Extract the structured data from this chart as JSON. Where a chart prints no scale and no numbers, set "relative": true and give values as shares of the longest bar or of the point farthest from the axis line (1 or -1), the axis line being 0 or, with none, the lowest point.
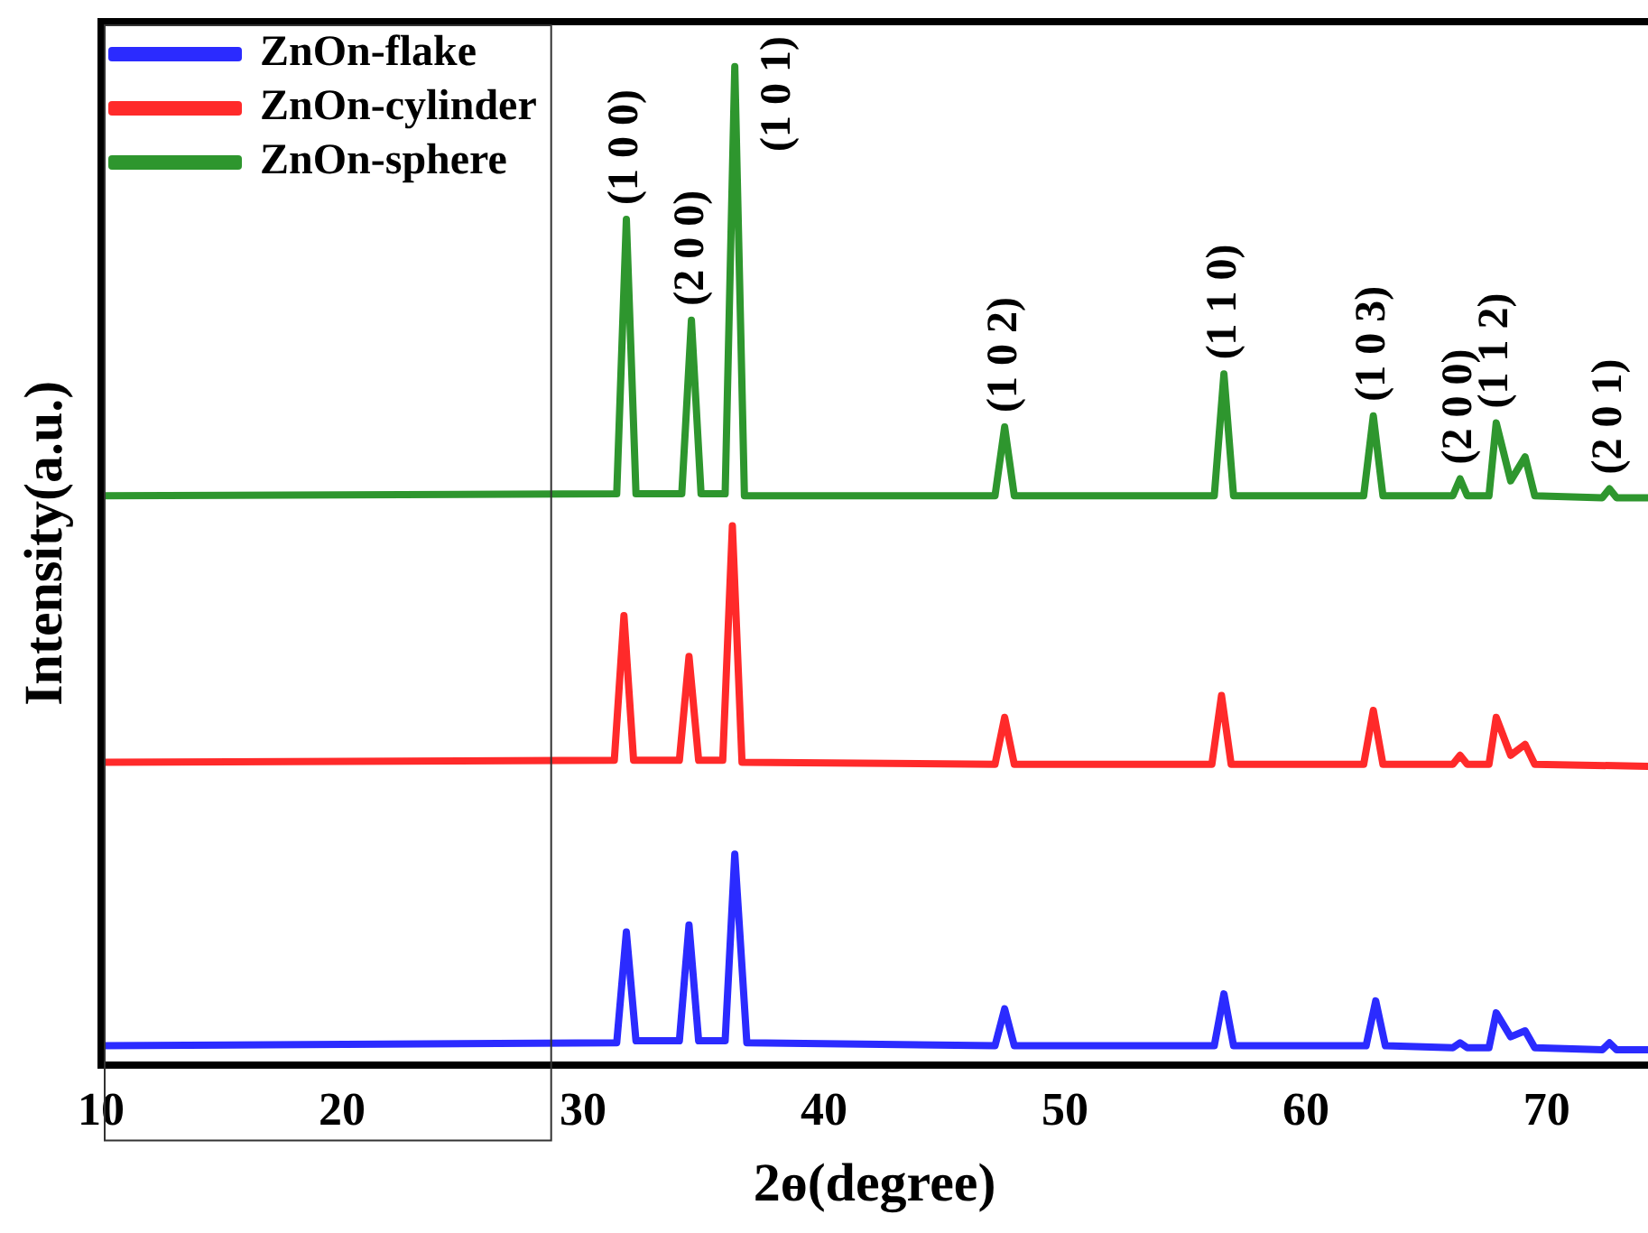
{
  "chart_data": {
    "type": "line",
    "relative": true,
    "xlabel": "2ɵ(degree)",
    "ylabel": "Intensity(a.u.)",
    "xlim": [
      10,
      74.2
    ],
    "xticks": [
      10,
      20,
      30,
      40,
      50,
      60,
      70
    ],
    "legend": "top left",
    "grid": false,
    "marker": "none",
    "line_style": "solid",
    "series": [
      {
        "name": "ZnOn-flake",
        "color": "#2b2bff",
        "x": [
          10,
          31.4,
          31.8,
          32.2,
          34.0,
          34.4,
          34.8,
          35.9,
          36.3,
          36.8,
          47.1,
          47.5,
          47.9,
          56.2,
          56.6,
          57.0,
          62.5,
          62.9,
          63.3,
          66.1,
          66.4,
          66.7,
          67.6,
          67.9,
          68.5,
          69.1,
          69.5,
          72.3,
          72.6,
          72.9,
          74.2
        ],
        "values": [
          0.019,
          0.022,
          0.133,
          0.024,
          0.024,
          0.14,
          0.024,
          0.024,
          0.211,
          0.022,
          0.019,
          0.056,
          0.019,
          0.019,
          0.071,
          0.019,
          0.019,
          0.064,
          0.019,
          0.017,
          0.022,
          0.017,
          0.017,
          0.052,
          0.028,
          0.034,
          0.017,
          0.015,
          0.022,
          0.015,
          0.015
        ]
      },
      {
        "name": "ZnOn-cylinder",
        "color": "#ff2a2a",
        "x": [
          10,
          31.3,
          31.7,
          32.1,
          34.0,
          34.4,
          34.8,
          35.8,
          36.2,
          36.6,
          47.1,
          47.5,
          47.9,
          56.1,
          56.5,
          56.9,
          62.4,
          62.8,
          63.2,
          66.1,
          66.4,
          66.7,
          67.6,
          67.9,
          68.5,
          69.1,
          69.5,
          74.2
        ],
        "values": [
          0.303,
          0.305,
          0.45,
          0.305,
          0.305,
          0.409,
          0.305,
          0.305,
          0.54,
          0.303,
          0.301,
          0.348,
          0.301,
          0.301,
          0.37,
          0.301,
          0.301,
          0.355,
          0.301,
          0.301,
          0.31,
          0.301,
          0.301,
          0.348,
          0.31,
          0.321,
          0.301,
          0.299
        ]
      },
      {
        "name": "ZnOn-sphere",
        "color": "#2e962e",
        "x": [
          10,
          31.4,
          31.8,
          32.2,
          34.1,
          34.5,
          34.9,
          35.9,
          36.3,
          36.7,
          47.1,
          47.5,
          47.9,
          56.2,
          56.6,
          57.0,
          62.4,
          62.8,
          63.2,
          66.1,
          66.4,
          66.7,
          67.6,
          67.9,
          68.5,
          69.1,
          69.5,
          72.3,
          72.6,
          72.9,
          74.2
        ],
        "values": [
          0.57,
          0.572,
          0.847,
          0.572,
          0.572,
          0.746,
          0.572,
          0.572,
          1.0,
          0.57,
          0.57,
          0.639,
          0.57,
          0.57,
          0.692,
          0.57,
          0.57,
          0.65,
          0.57,
          0.57,
          0.587,
          0.57,
          0.57,
          0.643,
          0.585,
          0.609,
          0.57,
          0.568,
          0.577,
          0.568,
          0.568
        ]
      }
    ],
    "annotations": [
      {
        "text": "(1 0 0)",
        "x": 31.8,
        "y": 0.847
      },
      {
        "text": "(2 0 0)",
        "x": 34.5,
        "y": 0.746
      },
      {
        "text": "(1 0 1)",
        "x": 36.3,
        "y": 1.0
      },
      {
        "text": "(1 0 2)",
        "x": 47.5,
        "y": 0.639
      },
      {
        "text": "(1 1 0)",
        "x": 56.6,
        "y": 0.692
      },
      {
        "text": "(1 0 3)",
        "x": 62.8,
        "y": 0.65
      },
      {
        "text": "(2 0 0)",
        "x": 66.4,
        "y": 0.587
      },
      {
        "text": "(1 1 2)",
        "x": 67.9,
        "y": 0.643
      },
      {
        "text": "(2 0 1)",
        "x": 72.6,
        "y": 0.577
      }
    ]
  }
}
